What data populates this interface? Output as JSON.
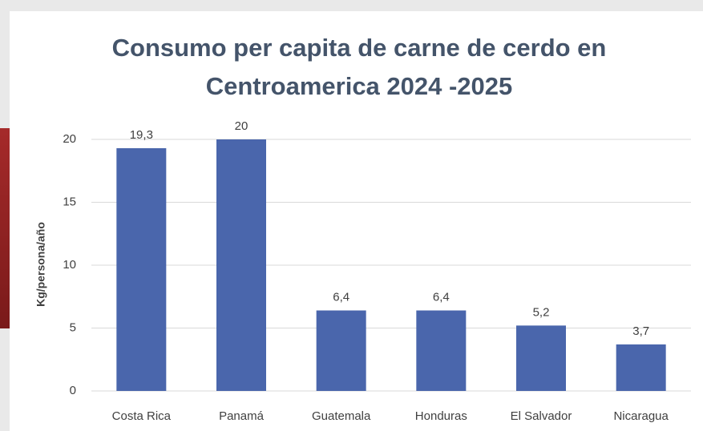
{
  "chart_data": {
    "type": "bar",
    "title": "Consumo per capita de carne de cerdo en Centroamerica 2024 -2025",
    "y_label": "Kg/persona/año",
    "categories": [
      "Costa Rica",
      "Panamá",
      "Guatemala",
      "Honduras",
      "El Salvador",
      "Nicaragua"
    ],
    "values": [
      19.3,
      20,
      6.4,
      6.4,
      5.2,
      3.7
    ],
    "value_labels": [
      "19,3",
      "20",
      "6,4",
      "6,4",
      "5,2",
      "3,7"
    ],
    "color": "#4a66ac",
    "ylim": [
      0,
      20
    ],
    "yticks": [
      0,
      5,
      10,
      15,
      20
    ],
    "grid": true
  }
}
